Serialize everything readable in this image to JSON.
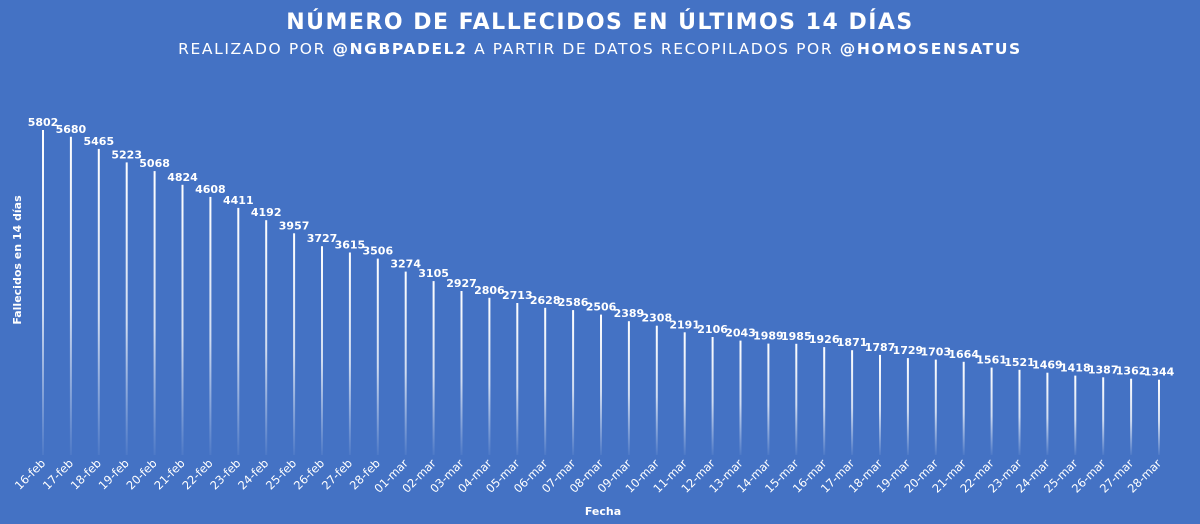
{
  "chart_data": {
    "type": "bar",
    "title": "NÚMERO DE FALLECIDOS EN ÚLTIMOS 14 DÍAS",
    "subtitle": {
      "prefix": "REALIZADO POR ",
      "author": "@NGBPADEL2",
      "middle": " A PARTIR DE DATOS RECOPILADOS POR ",
      "source": "@HOMOSENSATUS"
    },
    "xlabel": "Fecha",
    "ylabel": "Fallecidos en 14 días",
    "categories": [
      "16-feb",
      "17-feb",
      "18-feb",
      "19-feb",
      "20-feb",
      "21-feb",
      "22-feb",
      "23-feb",
      "24-feb",
      "25-feb",
      "26-feb",
      "27-feb",
      "28-feb",
      "01-mar",
      "02-mar",
      "03-mar",
      "04-mar",
      "05-mar",
      "06-mar",
      "07-mar",
      "08-mar",
      "09-mar",
      "10-mar",
      "11-mar",
      "12-mar",
      "13-mar",
      "14-mar",
      "15-mar",
      "16-mar",
      "17-mar",
      "18-mar",
      "19-mar",
      "20-mar",
      "21-mar",
      "22-mar",
      "23-mar",
      "24-mar",
      "25-mar",
      "26-mar",
      "27-mar",
      "28-mar"
    ],
    "values": [
      5802,
      5680,
      5465,
      5223,
      5068,
      4824,
      4608,
      4411,
      4192,
      3957,
      3727,
      3615,
      3506,
      3274,
      3105,
      2927,
      2806,
      2713,
      2628,
      2586,
      2506,
      2389,
      2308,
      2191,
      2106,
      2043,
      1989,
      1985,
      1926,
      1871,
      1787,
      1729,
      1703,
      1664,
      1561,
      1521,
      1469,
      1418,
      1387,
      1362,
      1344
    ],
    "ylim": [
      0,
      5802
    ],
    "grid": false,
    "legend": "none",
    "colors": {
      "background": "#4472c4",
      "bar": "#ffffff",
      "text": "#ffffff"
    }
  }
}
